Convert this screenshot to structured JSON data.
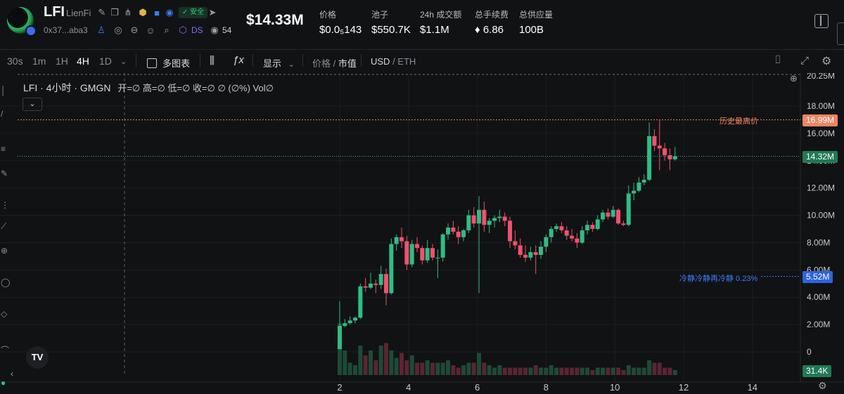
{
  "header": {
    "symbol": "LFI",
    "name": "LienFi",
    "address": "0x37...aba3",
    "safe_badge": "安全",
    "ds_label": "DS",
    "eye_count": "54",
    "market_cap": "$14.33M",
    "stats": [
      {
        "label": "价格",
        "value": "$0.0₅143"
      },
      {
        "label": "池子",
        "value": "$550.7K"
      },
      {
        "label": "24h 成交额",
        "value": "$1.1M"
      },
      {
        "label": "总手续费",
        "value": "♦ 6.86"
      },
      {
        "label": "总供应量",
        "value": "100B"
      }
    ]
  },
  "toolbar": {
    "timeframes": [
      "30s",
      "1m",
      "1H",
      "4H",
      "1D"
    ],
    "active_timeframe": "4H",
    "multi_chart": "多图表",
    "display": "显示",
    "price_label": "价格",
    "mcap_label": "市值",
    "currency_usd": "USD",
    "currency_eth": "ETH"
  },
  "legend": {
    "title": "LFI · 4小时 · GMGN",
    "ohlc": "开=∅ 高=∅ 低=∅ 收=∅ ∅ (∅%) Vol∅"
  },
  "chart_data": {
    "type": "candlestick",
    "y_axis_ticks": [
      "0",
      "2.00M",
      "4.00M",
      "6.00M",
      "8.00M",
      "10.00M",
      "12.00M",
      "14.00M",
      "16.00M",
      "18.00M",
      "20.25M"
    ],
    "x_axis_ticks": [
      "2",
      "4",
      "6",
      "8",
      "10",
      "12",
      "14"
    ],
    "ath_label": "历史最高价",
    "ath_value": "16.99M",
    "current_value": "14.32M",
    "hint_label": "冷静冷静再冷静 0.23%",
    "hint_value": "5.52M",
    "volume_value": "31.4K",
    "colors": {
      "up": "#2ebd85",
      "down": "#f0516d",
      "ath": "#f0845f",
      "hint": "#3a7bf6"
    },
    "candles": [
      [
        2.0,
        0.2,
        3.7,
        0.2,
        1.9
      ],
      [
        2.15,
        1.9,
        2.4,
        1.8,
        2.1
      ],
      [
        2.3,
        2.1,
        2.6,
        2.0,
        2.3
      ],
      [
        2.45,
        2.3,
        2.6,
        2.1,
        2.5
      ],
      [
        2.6,
        2.5,
        5.0,
        2.4,
        4.8
      ],
      [
        2.75,
        4.8,
        5.4,
        4.4,
        4.7
      ],
      [
        2.9,
        4.7,
        5.8,
        4.6,
        5.0
      ],
      [
        3.05,
        5.0,
        5.3,
        4.3,
        4.9
      ],
      [
        3.2,
        4.9,
        6.3,
        4.6,
        5.7
      ],
      [
        3.35,
        5.7,
        6.1,
        3.4,
        4.3
      ],
      [
        3.5,
        4.3,
        8.3,
        4.2,
        7.9
      ],
      [
        3.65,
        7.9,
        8.6,
        7.4,
        8.4
      ],
      [
        3.8,
        8.4,
        9.1,
        7.6,
        8.1
      ],
      [
        3.95,
        8.1,
        8.5,
        6.0,
        6.4
      ],
      [
        4.1,
        6.4,
        8.2,
        6.2,
        7.9
      ],
      [
        4.25,
        7.9,
        8.4,
        7.3,
        7.6
      ],
      [
        4.4,
        7.6,
        7.8,
        6.4,
        6.7
      ],
      [
        4.55,
        6.7,
        8.2,
        6.5,
        7.6
      ],
      [
        4.7,
        7.6,
        7.9,
        6.7,
        6.9
      ],
      [
        4.85,
        6.9,
        7.5,
        5.4,
        6.9
      ],
      [
        5.0,
        6.9,
        8.7,
        6.6,
        8.6
      ],
      [
        5.15,
        8.6,
        9.4,
        8.2,
        9.1
      ],
      [
        5.3,
        9.1,
        9.6,
        8.6,
        8.8
      ],
      [
        5.45,
        8.8,
        9.2,
        7.9,
        8.4
      ],
      [
        5.6,
        8.4,
        9.0,
        8.1,
        8.9
      ],
      [
        5.75,
        8.9,
        10.4,
        8.7,
        10.0
      ],
      [
        5.9,
        10.0,
        10.6,
        9.1,
        9.4
      ],
      [
        6.05,
        9.4,
        11.4,
        4.3,
        10.4
      ],
      [
        6.2,
        10.4,
        11.0,
        8.8,
        9.3
      ],
      [
        6.35,
        9.3,
        9.8,
        8.7,
        9.6
      ],
      [
        6.5,
        9.6,
        10.0,
        9.1,
        9.8
      ],
      [
        6.65,
        9.8,
        10.4,
        9.5,
        9.9
      ],
      [
        6.8,
        9.9,
        10.2,
        9.2,
        9.6
      ],
      [
        6.95,
        9.6,
        9.9,
        7.6,
        8.1
      ],
      [
        7.1,
        8.1,
        8.9,
        7.5,
        7.8
      ],
      [
        7.25,
        7.8,
        8.3,
        6.9,
        7.1
      ],
      [
        7.4,
        7.1,
        7.8,
        6.6,
        6.9
      ],
      [
        7.55,
        6.9,
        7.7,
        6.7,
        7.3
      ],
      [
        7.7,
        7.3,
        7.8,
        5.7,
        7.1
      ],
      [
        7.85,
        7.1,
        8.1,
        6.8,
        7.7
      ],
      [
        8.0,
        7.7,
        8.6,
        7.3,
        8.4
      ],
      [
        8.15,
        8.4,
        9.2,
        8.0,
        9.0
      ],
      [
        8.3,
        9.0,
        9.4,
        8.8,
        9.2
      ],
      [
        8.45,
        9.2,
        9.5,
        8.7,
        8.9
      ],
      [
        8.6,
        8.9,
        9.2,
        8.2,
        8.5
      ],
      [
        8.75,
        8.5,
        9.0,
        8.1,
        8.3
      ],
      [
        8.9,
        8.3,
        8.7,
        7.6,
        8.0
      ],
      [
        9.05,
        8.0,
        9.2,
        7.9,
        8.9
      ],
      [
        9.2,
        8.9,
        9.6,
        8.6,
        9.3
      ],
      [
        9.35,
        9.3,
        9.5,
        8.8,
        9.0
      ],
      [
        9.5,
        9.0,
        10.0,
        8.9,
        9.7
      ],
      [
        9.65,
        9.7,
        10.4,
        9.5,
        10.2
      ],
      [
        9.8,
        10.2,
        10.5,
        9.7,
        9.9
      ],
      [
        9.95,
        9.9,
        10.7,
        9.8,
        10.4
      ],
      [
        10.1,
        10.4,
        10.5,
        9.3,
        9.4
      ],
      [
        10.25,
        9.4,
        9.6,
        9.2,
        9.3
      ],
      [
        10.4,
        9.3,
        12.2,
        9.2,
        11.6
      ],
      [
        10.55,
        11.6,
        12.4,
        11.1,
        11.8
      ],
      [
        10.7,
        11.8,
        12.8,
        11.7,
        12.4
      ],
      [
        10.85,
        12.4,
        13.0,
        12.2,
        12.6
      ],
      [
        11.0,
        12.6,
        16.8,
        12.5,
        15.8
      ],
      [
        11.15,
        15.8,
        16.3,
        14.7,
        15.1
      ],
      [
        11.3,
        15.1,
        16.99,
        13.3,
        14.9
      ],
      [
        11.45,
        14.9,
        15.3,
        14.0,
        14.4
      ],
      [
        11.6,
        14.4,
        14.9,
        13.3,
        14.1
      ],
      [
        11.75,
        14.1,
        15.0,
        14.0,
        14.32
      ]
    ],
    "volumes": [
      2.1,
      1.0,
      0.5,
      0.4,
      1.2,
      0.8,
      1.0,
      0.6,
      1.2,
      1.3,
      1.0,
      0.7,
      0.9,
      0.6,
      0.8,
      0.5,
      0.5,
      0.6,
      0.5,
      0.5,
      0.5,
      0.6,
      0.4,
      0.3,
      0.4,
      0.5,
      0.5,
      0.9,
      0.5,
      0.4,
      0.3,
      0.4,
      0.3,
      0.3,
      0.3,
      0.3,
      0.3,
      0.3,
      0.4,
      0.3,
      0.3,
      0.4,
      0.3,
      0.3,
      0.3,
      0.3,
      0.3,
      0.3,
      0.3,
      0.2,
      0.3,
      0.3,
      0.3,
      0.3,
      0.3,
      0.2,
      0.4,
      0.3,
      0.3,
      0.3,
      0.6,
      0.5,
      0.5,
      0.3,
      0.3,
      0.2
    ],
    "ath_line": 16.99,
    "current_line": 14.32,
    "hint_line": 5.52
  },
  "icons": [
    "edit-icon",
    "copy-icon",
    "share-icon",
    "tag-icon",
    "verified-icon",
    "shield-icon",
    "telegram-icon",
    "user-icon",
    "globe-icon",
    "minus-circle-icon",
    "smile-icon",
    "search-icon",
    "cube-icon",
    "eye-icon",
    "camera-icon",
    "expand-icon",
    "settings-icon"
  ]
}
